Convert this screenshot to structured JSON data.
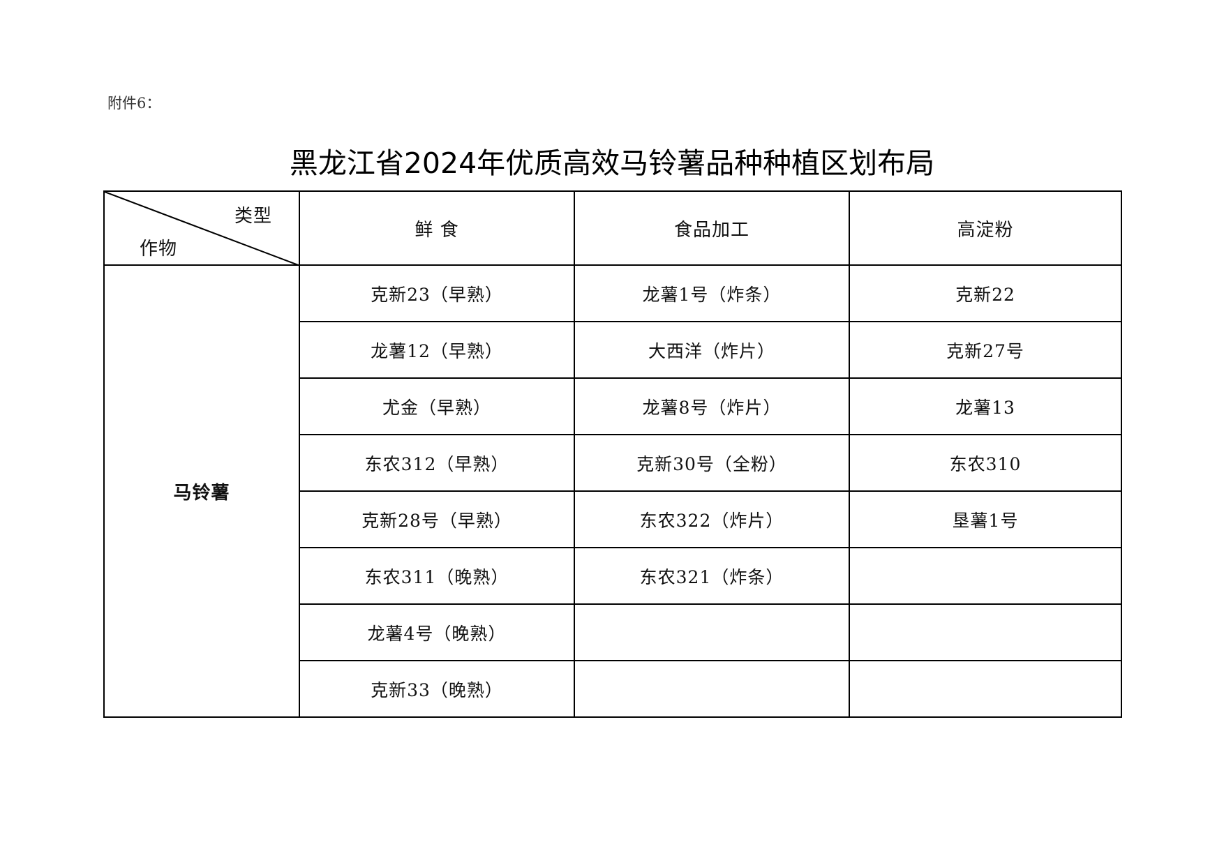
{
  "attachment_label": "附件6：",
  "title": "黑龙江省2024年优质高效马铃薯品种种植区划布局",
  "table": {
    "corner_top": "类型",
    "corner_bottom": "作物",
    "headers": [
      "鲜 食",
      "食品加工",
      "高淀粉"
    ],
    "crop": "马铃薯",
    "rows": [
      [
        "克新23（早熟）",
        "龙薯1号（炸条）",
        "克新22"
      ],
      [
        "龙薯12（早熟）",
        "大西洋（炸片）",
        "克新27号"
      ],
      [
        "尤金（早熟）",
        "龙薯8号（炸片）",
        "龙薯13"
      ],
      [
        "东农312（早熟）",
        "克新30号（全粉）",
        "东农310"
      ],
      [
        "克新28号（早熟）",
        "东农322（炸片）",
        "垦薯1号"
      ],
      [
        "东农311（晚熟）",
        "东农321（炸条）",
        ""
      ],
      [
        "龙薯4号（晚熟）",
        "",
        ""
      ],
      [
        "克新33（晚熟）",
        "",
        ""
      ]
    ]
  }
}
